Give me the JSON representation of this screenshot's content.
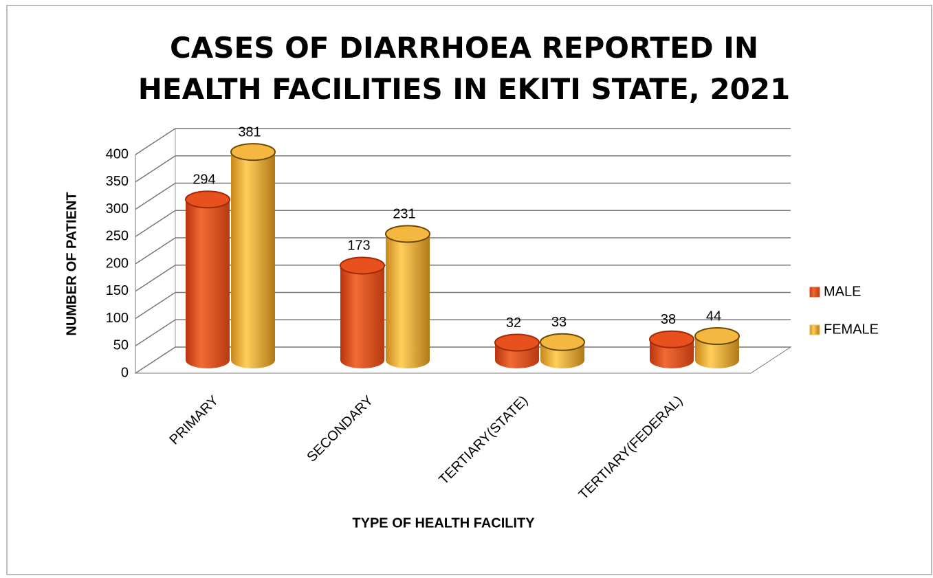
{
  "chart_data": {
    "type": "bar",
    "title": "CASES OF DIARRHOEA REPORTED IN HEALTH FACILITIES IN EKITI STATE, 2021",
    "x_label": "TYPE OF HEALTH FACILITY",
    "y_label": "NUMBER OF PATIENT",
    "categories": [
      "PRIMARY",
      "SECONDARY",
      "TERTIARY(STATE)",
      "TERTIARY(FEDERAL)"
    ],
    "series": [
      {
        "name": "MALE",
        "color": "#e8501e",
        "values": [
          294,
          173,
          32,
          38
        ]
      },
      {
        "name": "FEMALE",
        "color": "#f4b840",
        "values": [
          381,
          231,
          33,
          44
        ]
      }
    ],
    "ylim": [
      0,
      400
    ],
    "yticks": [
      0,
      50,
      100,
      150,
      200,
      250,
      300,
      350,
      400
    ],
    "grid": true,
    "legend": "right"
  }
}
